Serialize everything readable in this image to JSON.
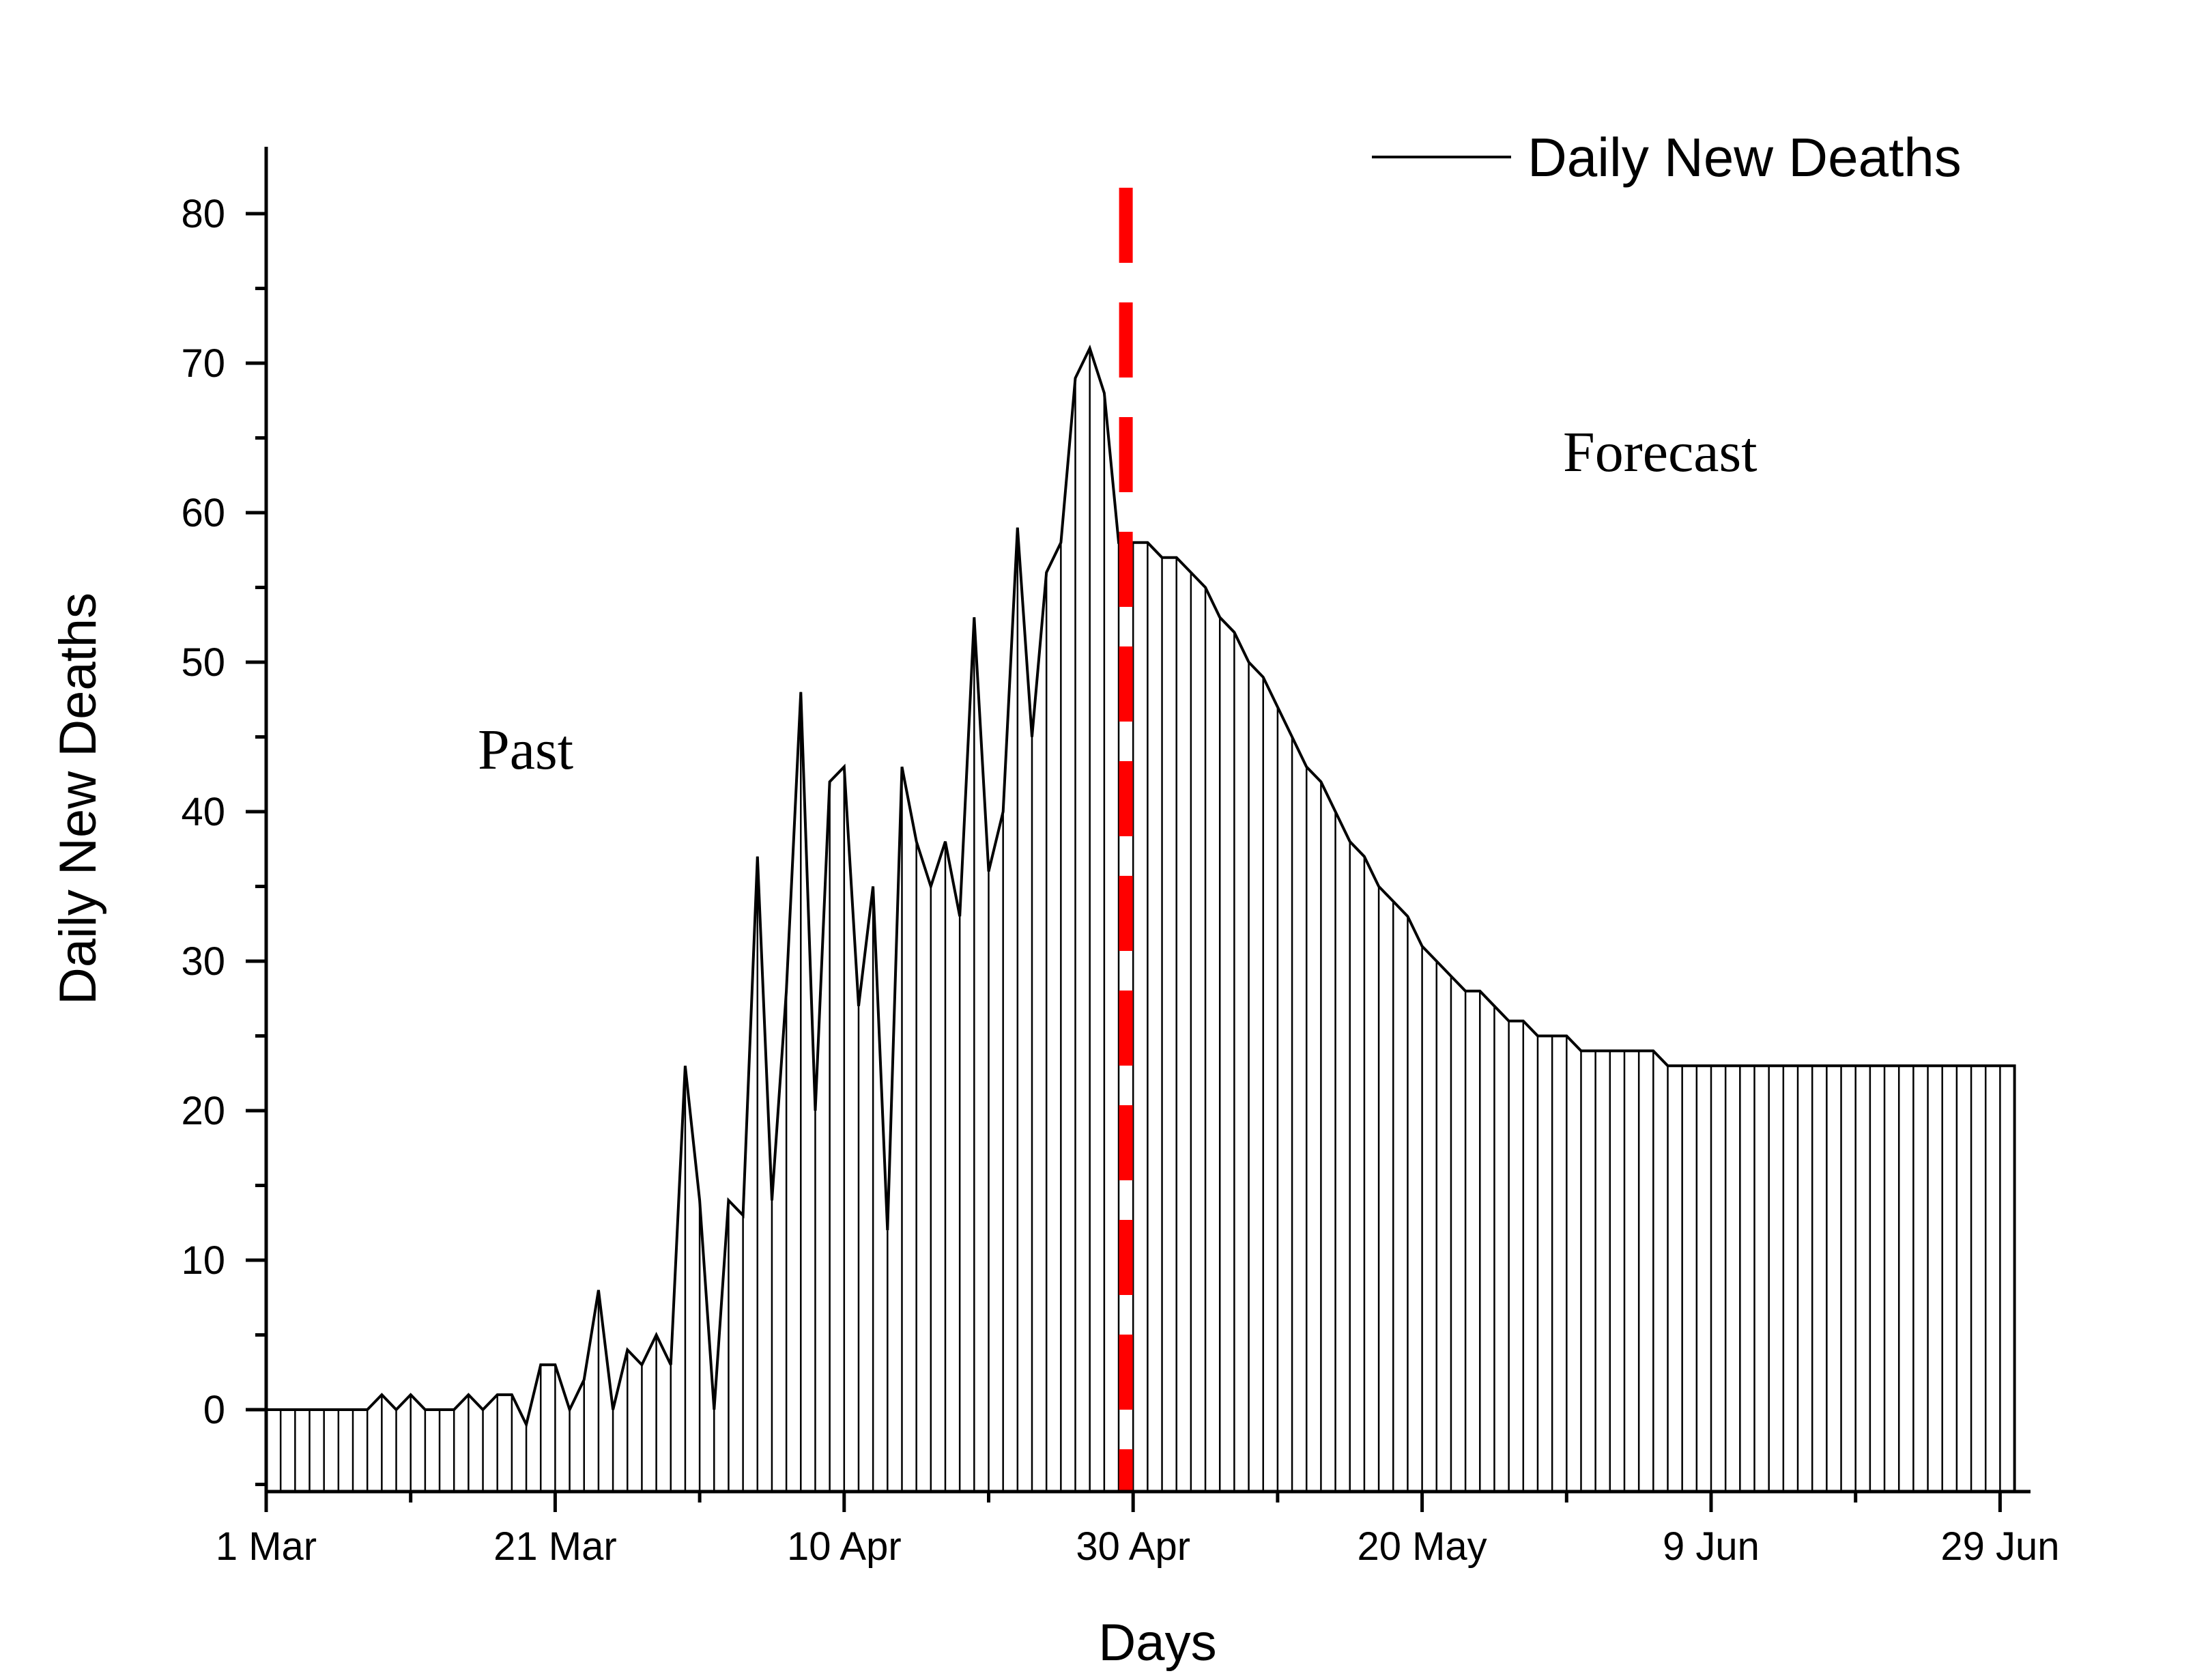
{
  "chart_data": {
    "type": "area",
    "ylabel": "Daily New Deaths",
    "xlabel": "Days",
    "ylim": [
      -5.5,
      84.5
    ],
    "yticks": [
      0,
      10,
      20,
      30,
      40,
      50,
      60,
      70,
      80
    ],
    "xlim_day": [
      0,
      122
    ],
    "xticks": [
      {
        "day": 0,
        "label": "1 Mar"
      },
      {
        "day": 20,
        "label": "21 Mar"
      },
      {
        "day": 40,
        "label": "10 Apr"
      },
      {
        "day": 60,
        "label": "30 Apr"
      },
      {
        "day": 80,
        "label": "20 May"
      },
      {
        "day": 100,
        "label": "9 Jun"
      },
      {
        "day": 120,
        "label": "29 Jun"
      }
    ],
    "legend": {
      "label": "Daily New Deaths",
      "position": "top-right"
    },
    "divider": {
      "day": 59.5,
      "color": "#ff0000",
      "style": "dashed"
    },
    "annotations": [
      {
        "text": "Past",
        "region": "past"
      },
      {
        "text": "Forecast",
        "region": "forecast"
      }
    ],
    "series": [
      {
        "x_start": "1 Mar",
        "color": "#000000",
        "fill": "vertical-hatch",
        "values": [
          0,
          0,
          0,
          0,
          0,
          0,
          0,
          0,
          1,
          0,
          1,
          0,
          0,
          0,
          1,
          0,
          1,
          1,
          -1,
          3,
          3,
          0,
          2,
          8,
          0,
          4,
          3,
          5,
          3,
          23,
          14,
          0,
          14,
          13,
          37,
          14,
          28,
          48,
          20,
          42,
          43,
          27,
          35,
          12,
          43,
          38,
          35,
          38,
          33,
          53,
          36,
          40,
          59,
          45,
          56,
          58,
          69,
          71,
          68,
          58,
          58,
          58,
          57,
          57,
          56,
          55,
          53,
          52,
          50,
          49,
          47,
          45,
          43,
          42,
          40,
          38,
          37,
          35,
          34,
          33,
          31,
          30,
          29,
          28,
          28,
          27,
          26,
          26,
          25,
          25,
          25,
          24,
          24,
          24,
          24,
          24,
          24,
          23,
          23,
          23,
          23,
          23,
          23,
          23,
          23,
          23,
          23,
          23,
          23,
          23,
          23,
          23,
          23,
          23,
          23,
          23,
          23,
          23,
          23,
          23,
          23,
          23
        ]
      }
    ]
  }
}
